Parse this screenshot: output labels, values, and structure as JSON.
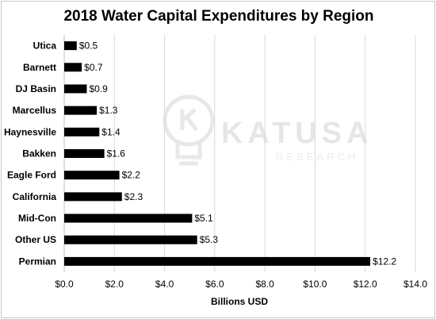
{
  "chart_data": {
    "type": "bar",
    "orientation": "horizontal",
    "title": "2018 Water Capital Expenditures by Region",
    "xlabel": "Billions USD",
    "ylabel": "",
    "categories": [
      "Utica",
      "Barnett",
      "DJ Basin",
      "Marcellus",
      "Haynesville",
      "Bakken",
      "Eagle Ford",
      "California",
      "Mid-Con",
      "Other US",
      "Permian"
    ],
    "values": [
      0.5,
      0.7,
      0.9,
      1.3,
      1.4,
      1.6,
      2.2,
      2.3,
      5.1,
      5.3,
      12.2
    ],
    "value_labels": [
      "$0.5",
      "$0.7",
      "$0.9",
      "$1.3",
      "$1.4",
      "$1.6",
      "$2.2",
      "$2.3",
      "$5.1",
      "$5.3",
      "$12.2"
    ],
    "xlim": [
      0,
      14
    ],
    "ticks": [
      0,
      2,
      4,
      6,
      8,
      10,
      12,
      14
    ],
    "tick_labels": [
      "$0.0",
      "$2.0",
      "$4.0",
      "$6.0",
      "$8.0",
      "$10.0",
      "$12.0",
      "$14.0"
    ],
    "grid": true,
    "legend": "none",
    "bar_color": "#000000",
    "grid_color": "#d9d9d9"
  },
  "watermark": {
    "brand": "KATUSA",
    "subtitle": "RESEARCH"
  }
}
